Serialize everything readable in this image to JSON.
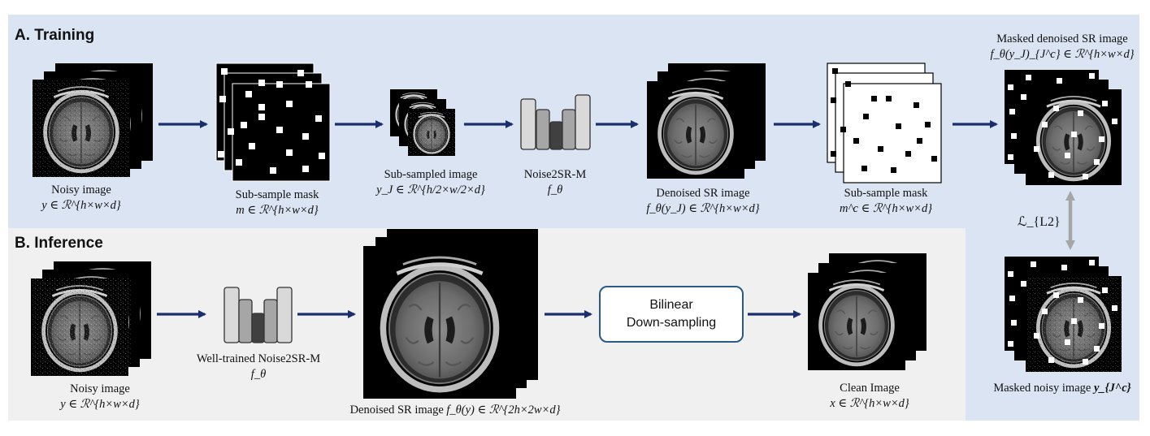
{
  "training": {
    "title": "A. Training",
    "noisy_image": {
      "name": "Noisy image",
      "math": "y ∈ ℛ^{h×w×d}"
    },
    "mask": {
      "name": "Sub-sample mask",
      "math": "m ∈ ℛ^{h×w×d}"
    },
    "subsampled": {
      "name": "Sub-sampled image",
      "math": "y_J ∈ ℛ^{h/2×w/2×d}"
    },
    "network": {
      "name": "Noise2SR-M",
      "math": "f_θ"
    },
    "denoised_sr": {
      "name": "Denoised SR image",
      "math": "f_θ(y_J) ∈ ℛ^{h×w×d}"
    },
    "complement_mask": {
      "name": "Sub-sample mask",
      "math": "m^c ∈ ℛ^{h×w×d}"
    },
    "masked_denoised": {
      "name": "Masked denoised SR image",
      "math": "f_θ(y_J)_{J^c} ∈ ℛ^{h×w×d}"
    },
    "loss": "ℒ_{L2}",
    "masked_noisy": {
      "name": "Masked noisy image",
      "math": "y_{J^c}"
    }
  },
  "inference": {
    "title": "B. Inference",
    "noisy_image": {
      "name": "Noisy image",
      "math": "y ∈ ℛ^{h×w×d}"
    },
    "network": {
      "name": "Well-trained Noise2SR-M",
      "math": "f_θ"
    },
    "denoised_sr": {
      "name": "Denoised SR image",
      "math": "f_θ(y) ∈ ℛ^{2h×2w×d}"
    },
    "downsampling": {
      "line1": "Bilinear",
      "line2": "Down-sampling"
    },
    "clean": {
      "name": "Clean Image",
      "math": "x ∈ ℛ^{h×w×d}"
    }
  },
  "colors": {
    "training_bg": "#dbe4f3",
    "inference_bg": "#f0f0f0",
    "arrow": "#1a2e6e",
    "loss_arrow": "#a6a6a6"
  }
}
